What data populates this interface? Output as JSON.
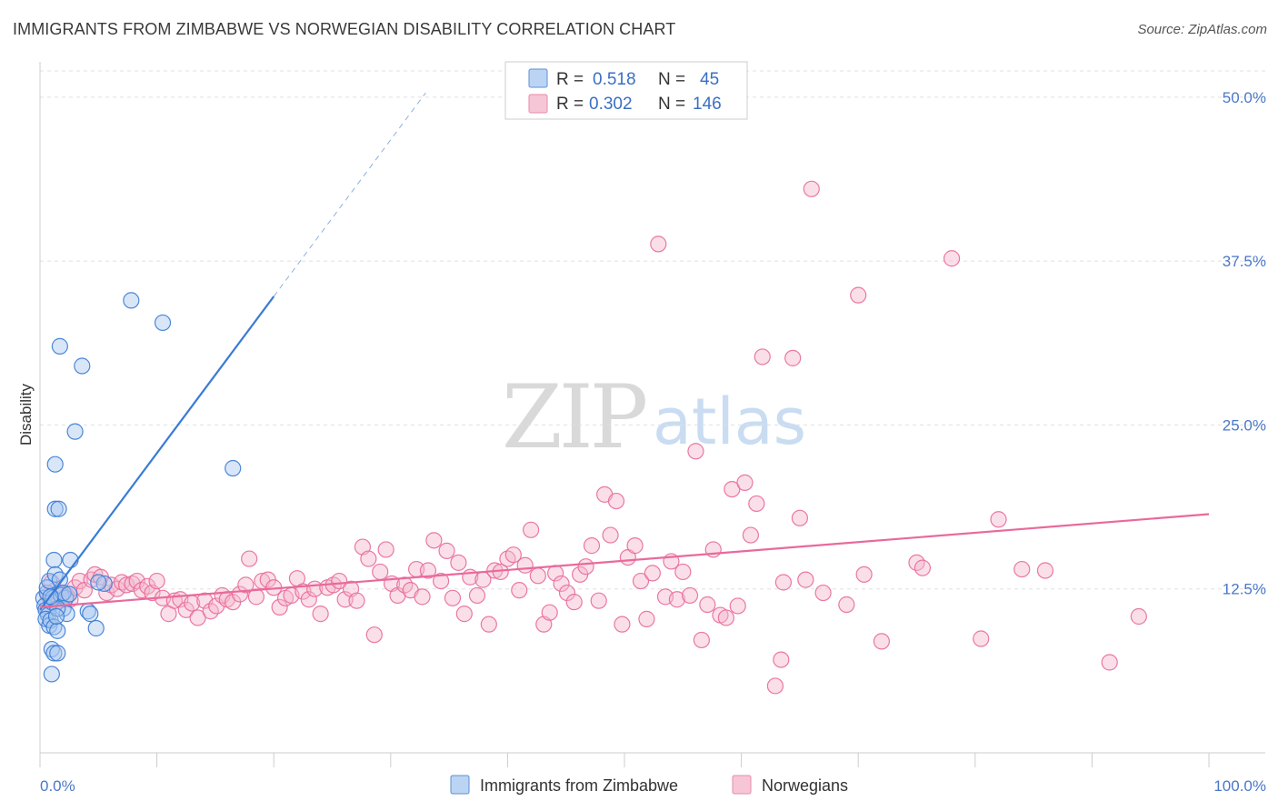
{
  "title": "IMMIGRANTS FROM ZIMBABWE VS NORWEGIAN DISABILITY CORRELATION CHART",
  "source": "Source: ZipAtlas.com",
  "watermark": {
    "zip": "ZIP",
    "atlas": "atlas"
  },
  "colors": {
    "blue": "#3a7bd5",
    "pink": "#e86a9a",
    "blue_fill": "#a9c8ef",
    "pink_fill": "#f4b8cc",
    "axis_label": "#4a78c8"
  },
  "legend_stats": [
    {
      "r_label": "R =",
      "r": "0.518",
      "n_label": "N =",
      "n": "45"
    },
    {
      "r_label": "R =",
      "r": "0.302",
      "n_label": "N =",
      "n": "146"
    }
  ],
  "chart_data": {
    "type": "scatter",
    "title": "IMMIGRANTS FROM ZIMBABWE VS NORWEGIAN DISABILITY CORRELATION CHART",
    "xlabel": "",
    "ylabel": "Disability",
    "xlim": [
      0,
      100
    ],
    "ylim": [
      0,
      52
    ],
    "x_tick_labels": [
      "0.0%",
      "100.0%"
    ],
    "y_ticks": [
      12.5,
      25.0,
      37.5,
      50.0
    ],
    "y_tick_labels": [
      "12.5%",
      "25.0%",
      "37.5%",
      "50.0%"
    ],
    "grid": true,
    "legend_position": "top-center",
    "series": [
      {
        "name": "Immigrants from Zimbabwe",
        "color": "#3a7bd5",
        "trend": {
          "x0": 0.0,
          "y0": 10.9,
          "x1": 20.0,
          "y1": 34.8,
          "dashed_to_x": 33.0
        },
        "points": [
          [
            0.3,
            11.8
          ],
          [
            0.4,
            11.2
          ],
          [
            0.5,
            10.9
          ],
          [
            0.6,
            12.2
          ],
          [
            0.7,
            10.5
          ],
          [
            0.5,
            10.2
          ],
          [
            0.8,
            9.7
          ],
          [
            0.9,
            10.1
          ],
          [
            1.0,
            11.5
          ],
          [
            0.6,
            12.6
          ],
          [
            0.8,
            13.1
          ],
          [
            1.1,
            11.8
          ],
          [
            1.2,
            14.7
          ],
          [
            1.3,
            13.6
          ],
          [
            1.0,
            7.9
          ],
          [
            1.2,
            7.6
          ],
          [
            1.0,
            6.0
          ],
          [
            1.5,
            7.6
          ],
          [
            1.2,
            9.6
          ],
          [
            1.5,
            9.3
          ],
          [
            1.3,
            18.6
          ],
          [
            1.6,
            18.6
          ],
          [
            1.3,
            22.0
          ],
          [
            1.7,
            31.0
          ],
          [
            3.0,
            24.5
          ],
          [
            3.6,
            29.5
          ],
          [
            7.8,
            34.5
          ],
          [
            10.5,
            32.8
          ],
          [
            16.5,
            21.7
          ],
          [
            1.8,
            12.0
          ],
          [
            2.0,
            11.0
          ],
          [
            2.2,
            11.8
          ],
          [
            2.3,
            10.6
          ],
          [
            2.6,
            14.7
          ],
          [
            1.7,
            13.2
          ],
          [
            2.0,
            12.2
          ],
          [
            2.5,
            12.1
          ],
          [
            4.1,
            10.8
          ],
          [
            4.3,
            10.6
          ],
          [
            4.8,
            9.5
          ],
          [
            5.5,
            12.9
          ],
          [
            5.0,
            13.0
          ],
          [
            1.5,
            11.0
          ],
          [
            0.9,
            11.9
          ],
          [
            1.4,
            10.4
          ]
        ]
      },
      {
        "name": "Norwegians",
        "color": "#e86a9a",
        "trend": {
          "x0": 0.0,
          "y0": 11.1,
          "x1": 100.0,
          "y1": 18.2
        },
        "points": [
          [
            0.7,
            12.0
          ],
          [
            1.0,
            13.0
          ],
          [
            1.3,
            12.4
          ],
          [
            1.6,
            11.6
          ],
          [
            1.9,
            12.1
          ],
          [
            2.3,
            12.0
          ],
          [
            2.6,
            11.7
          ],
          [
            3.0,
            12.6
          ],
          [
            3.4,
            13.1
          ],
          [
            3.8,
            12.4
          ],
          [
            4.4,
            13.2
          ],
          [
            4.7,
            13.6
          ],
          [
            5.2,
            13.4
          ],
          [
            5.7,
            12.2
          ],
          [
            6.1,
            12.8
          ],
          [
            6.6,
            12.5
          ],
          [
            7.0,
            13.0
          ],
          [
            7.4,
            12.8
          ],
          [
            7.9,
            12.9
          ],
          [
            8.3,
            13.1
          ],
          [
            8.7,
            12.4
          ],
          [
            9.2,
            12.7
          ],
          [
            9.6,
            12.2
          ],
          [
            10.0,
            13.1
          ],
          [
            10.5,
            11.8
          ],
          [
            11.0,
            10.6
          ],
          [
            11.5,
            11.6
          ],
          [
            12.0,
            11.7
          ],
          [
            12.5,
            10.9
          ],
          [
            13.0,
            11.4
          ],
          [
            13.5,
            10.3
          ],
          [
            14.1,
            11.6
          ],
          [
            14.6,
            10.8
          ],
          [
            15.1,
            11.2
          ],
          [
            15.6,
            12.0
          ],
          [
            16.0,
            11.7
          ],
          [
            16.5,
            11.5
          ],
          [
            17.1,
            12.1
          ],
          [
            17.6,
            12.8
          ],
          [
            17.9,
            14.8
          ],
          [
            18.5,
            11.9
          ],
          [
            19.0,
            13.1
          ],
          [
            19.5,
            13.2
          ],
          [
            20.0,
            12.6
          ],
          [
            20.5,
            11.1
          ],
          [
            21.0,
            11.8
          ],
          [
            21.5,
            12.0
          ],
          [
            22.0,
            13.3
          ],
          [
            22.5,
            12.3
          ],
          [
            23.0,
            11.7
          ],
          [
            23.5,
            12.5
          ],
          [
            24.0,
            10.6
          ],
          [
            24.6,
            12.6
          ],
          [
            25.1,
            12.8
          ],
          [
            25.6,
            13.1
          ],
          [
            26.1,
            11.7
          ],
          [
            26.6,
            12.5
          ],
          [
            27.1,
            11.6
          ],
          [
            27.6,
            15.7
          ],
          [
            28.1,
            14.8
          ],
          [
            28.6,
            9.0
          ],
          [
            29.1,
            13.8
          ],
          [
            29.6,
            15.5
          ],
          [
            30.1,
            12.9
          ],
          [
            30.6,
            12.0
          ],
          [
            31.2,
            12.8
          ],
          [
            31.7,
            12.4
          ],
          [
            32.2,
            14.0
          ],
          [
            32.7,
            11.9
          ],
          [
            33.2,
            13.9
          ],
          [
            33.7,
            16.2
          ],
          [
            34.3,
            13.1
          ],
          [
            34.8,
            15.4
          ],
          [
            35.3,
            11.8
          ],
          [
            35.8,
            14.5
          ],
          [
            36.3,
            10.6
          ],
          [
            36.8,
            13.4
          ],
          [
            37.4,
            12.0
          ],
          [
            37.9,
            13.2
          ],
          [
            38.4,
            9.8
          ],
          [
            38.9,
            13.9
          ],
          [
            39.4,
            13.8
          ],
          [
            40.0,
            14.8
          ],
          [
            40.5,
            15.1
          ],
          [
            41.0,
            12.4
          ],
          [
            41.5,
            14.3
          ],
          [
            42.0,
            17.0
          ],
          [
            42.6,
            13.5
          ],
          [
            43.1,
            9.8
          ],
          [
            43.6,
            10.7
          ],
          [
            44.1,
            13.7
          ],
          [
            44.6,
            12.9
          ],
          [
            45.1,
            12.2
          ],
          [
            45.7,
            11.5
          ],
          [
            46.2,
            13.6
          ],
          [
            46.7,
            14.2
          ],
          [
            47.2,
            15.8
          ],
          [
            47.8,
            11.6
          ],
          [
            48.3,
            19.7
          ],
          [
            48.8,
            16.6
          ],
          [
            49.3,
            19.2
          ],
          [
            49.8,
            9.8
          ],
          [
            50.3,
            14.9
          ],
          [
            50.9,
            15.8
          ],
          [
            51.4,
            13.1
          ],
          [
            51.9,
            10.2
          ],
          [
            52.4,
            13.7
          ],
          [
            52.9,
            38.8
          ],
          [
            53.5,
            11.9
          ],
          [
            54.0,
            14.6
          ],
          [
            54.5,
            11.7
          ],
          [
            55.0,
            13.8
          ],
          [
            55.6,
            12.0
          ],
          [
            56.1,
            23.0
          ],
          [
            56.6,
            8.6
          ],
          [
            57.1,
            11.3
          ],
          [
            57.6,
            15.5
          ],
          [
            58.2,
            10.5
          ],
          [
            58.7,
            10.3
          ],
          [
            59.2,
            20.1
          ],
          [
            59.7,
            11.2
          ],
          [
            60.3,
            20.6
          ],
          [
            60.8,
            16.6
          ],
          [
            61.3,
            19.0
          ],
          [
            61.8,
            30.2
          ],
          [
            62.9,
            5.1
          ],
          [
            63.4,
            7.1
          ],
          [
            63.6,
            13.0
          ],
          [
            64.4,
            30.1
          ],
          [
            65.0,
            17.9
          ],
          [
            65.5,
            13.2
          ],
          [
            66.0,
            43.0
          ],
          [
            67.0,
            12.2
          ],
          [
            69.0,
            11.3
          ],
          [
            70.0,
            34.9
          ],
          [
            70.5,
            13.6
          ],
          [
            72.0,
            8.5
          ],
          [
            75.0,
            14.5
          ],
          [
            75.5,
            14.1
          ],
          [
            78.0,
            37.7
          ],
          [
            80.5,
            8.7
          ],
          [
            82.0,
            17.8
          ],
          [
            86.0,
            13.9
          ],
          [
            91.5,
            6.9
          ],
          [
            84.0,
            14.0
          ],
          [
            94.0,
            10.4
          ]
        ]
      }
    ]
  }
}
